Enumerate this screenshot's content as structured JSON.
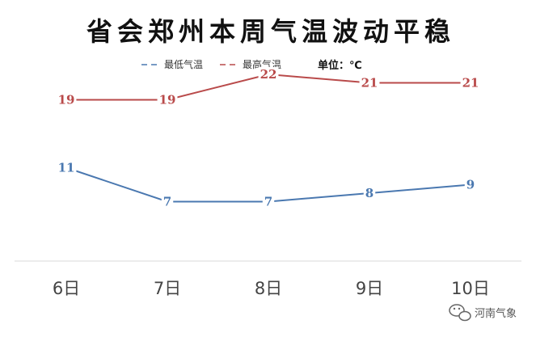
{
  "chart_data": {
    "type": "line",
    "title": "省会郑州本周气温波动平稳",
    "unit": "单位：℃",
    "categories": [
      "6日",
      "7日",
      "8日",
      "9日",
      "10日"
    ],
    "series": [
      {
        "name": "最低气温",
        "values": [
          11,
          7,
          7,
          8,
          9
        ],
        "color": "#4A78B0"
      },
      {
        "name": "最高气温",
        "values": [
          19,
          19,
          22,
          21,
          21
        ],
        "color": "#B94A4A"
      }
    ],
    "ylim": [
      0,
      26
    ],
    "grid": false,
    "legend_position": "top"
  },
  "watermark": {
    "icon": "wechat-icon",
    "text": "河南气象"
  }
}
